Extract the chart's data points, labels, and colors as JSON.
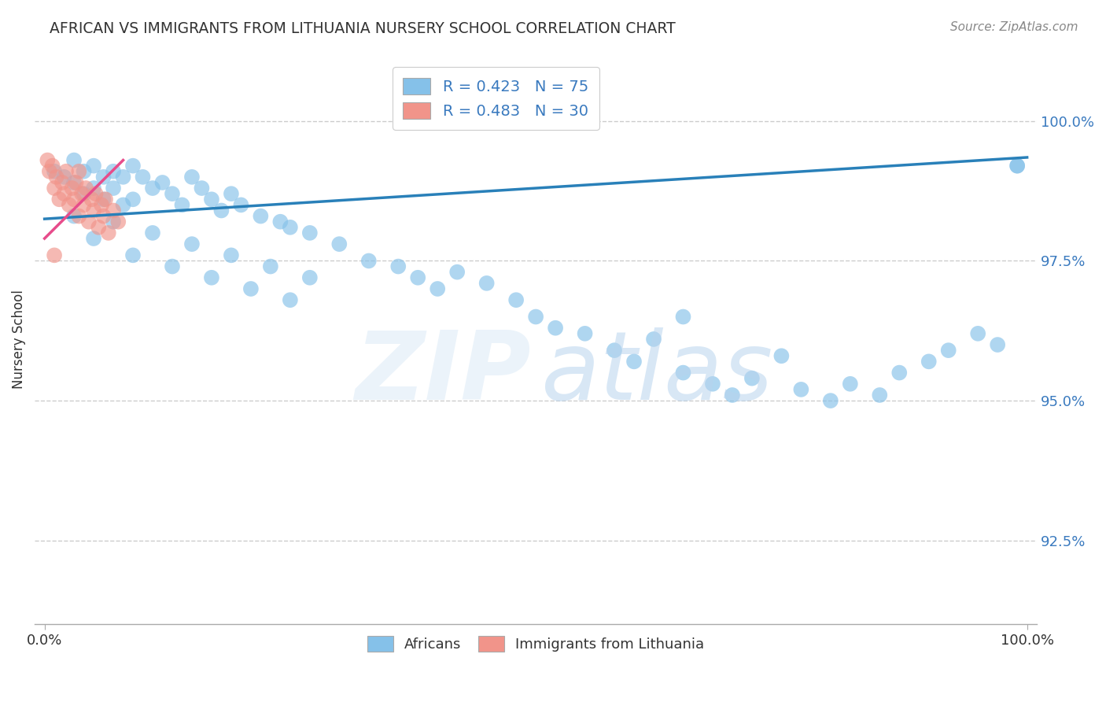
{
  "title": "AFRICAN VS IMMIGRANTS FROM LITHUANIA NURSERY SCHOOL CORRELATION CHART",
  "source": "Source: ZipAtlas.com",
  "ylabel": "Nursery School",
  "yticks": [
    92.5,
    95.0,
    97.5,
    100.0
  ],
  "xmin": 0.0,
  "xmax": 100.0,
  "ymin": 91.0,
  "ymax": 101.2,
  "legend_blue_r": "R = 0.423",
  "legend_blue_n": "N = 75",
  "legend_pink_r": "R = 0.483",
  "legend_pink_n": "N = 30",
  "legend_label_blue": "Africans",
  "legend_label_pink": "Immigrants from Lithuania",
  "blue_color": "#85c1e9",
  "blue_line_color": "#2980b9",
  "pink_color": "#f1948a",
  "pink_line_color": "#e74c8b",
  "blue_scatter_x": [
    1,
    2,
    3,
    3,
    4,
    4,
    5,
    5,
    6,
    6,
    7,
    7,
    8,
    8,
    9,
    9,
    10,
    11,
    12,
    13,
    14,
    15,
    16,
    17,
    18,
    19,
    20,
    22,
    24,
    25,
    27,
    30,
    33,
    36,
    38,
    40,
    42,
    45,
    48,
    50,
    52,
    55,
    58,
    60,
    62,
    65,
    68,
    70,
    72,
    75,
    77,
    80,
    82,
    85,
    87,
    90,
    92,
    95,
    97,
    99,
    3,
    5,
    7,
    9,
    11,
    13,
    15,
    17,
    19,
    21,
    23,
    25,
    27,
    65,
    99
  ],
  "blue_scatter_y": [
    99.1,
    99.0,
    98.9,
    99.3,
    99.1,
    98.7,
    99.2,
    98.8,
    99.0,
    98.6,
    99.1,
    98.8,
    99.0,
    98.5,
    99.2,
    98.6,
    99.0,
    98.8,
    98.9,
    98.7,
    98.5,
    99.0,
    98.8,
    98.6,
    98.4,
    98.7,
    98.5,
    98.3,
    98.2,
    98.1,
    98.0,
    97.8,
    97.5,
    97.4,
    97.2,
    97.0,
    97.3,
    97.1,
    96.8,
    96.5,
    96.3,
    96.2,
    95.9,
    95.7,
    96.1,
    95.5,
    95.3,
    95.1,
    95.4,
    95.8,
    95.2,
    95.0,
    95.3,
    95.1,
    95.5,
    95.7,
    95.9,
    96.2,
    96.0,
    99.2,
    98.3,
    97.9,
    98.2,
    97.6,
    98.0,
    97.4,
    97.8,
    97.2,
    97.6,
    97.0,
    97.4,
    96.8,
    97.2,
    96.5,
    99.2
  ],
  "pink_scatter_x": [
    0.3,
    0.5,
    0.8,
    1.0,
    1.2,
    1.5,
    1.8,
    2.0,
    2.2,
    2.5,
    2.8,
    3.0,
    3.2,
    3.5,
    3.8,
    4.0,
    4.2,
    4.5,
    4.8,
    5.0,
    5.2,
    5.5,
    5.8,
    6.0,
    6.2,
    6.5,
    7.0,
    7.5,
    1.0,
    3.5
  ],
  "pink_scatter_y": [
    99.3,
    99.1,
    99.2,
    98.8,
    99.0,
    98.6,
    98.9,
    98.7,
    99.1,
    98.5,
    98.8,
    98.6,
    98.9,
    98.3,
    98.7,
    98.5,
    98.8,
    98.2,
    98.6,
    98.4,
    98.7,
    98.1,
    98.5,
    98.3,
    98.6,
    98.0,
    98.4,
    98.2,
    97.6,
    99.1
  ],
  "blue_trendline_x0": 0,
  "blue_trendline_x1": 100,
  "blue_trendline_y0": 98.25,
  "blue_trendline_y1": 99.35,
  "pink_trendline_x0": 0,
  "pink_trendline_x1": 8,
  "pink_trendline_y0": 97.9,
  "pink_trendline_y1": 99.3
}
